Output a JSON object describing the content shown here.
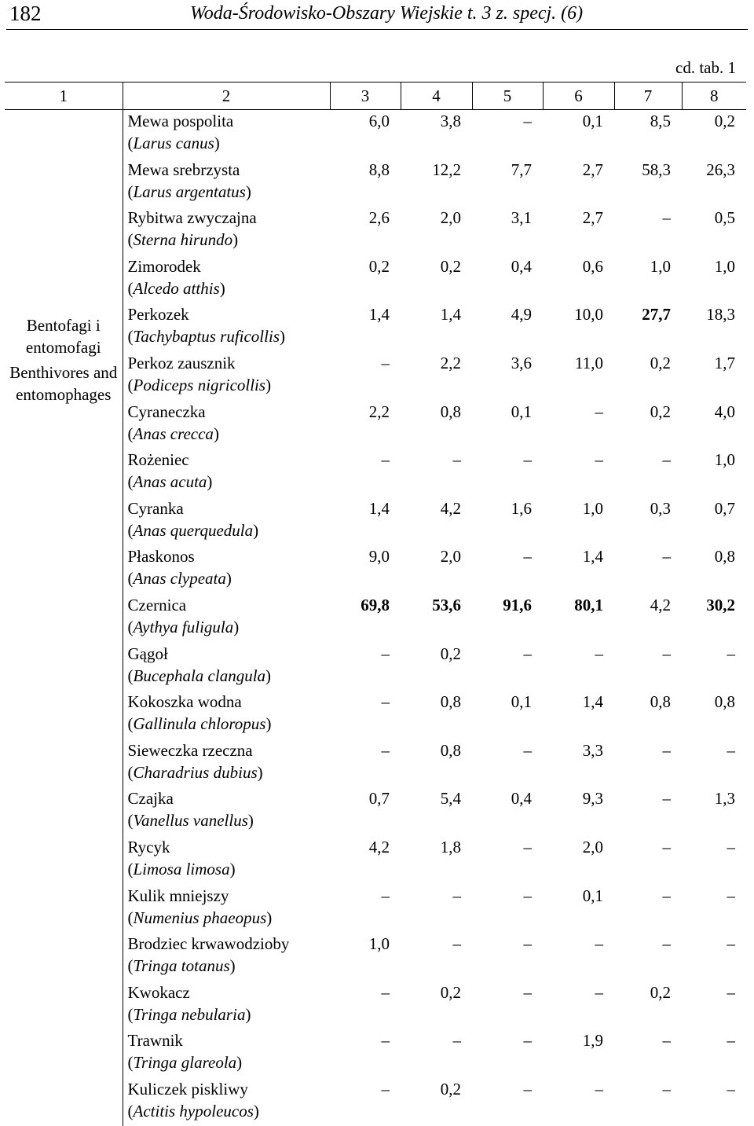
{
  "header": {
    "page_number": "182",
    "journal": "Woda-Środowisko-Obszary Wiejskie t. 3 z. specj. (6)"
  },
  "continuation": "cd. tab. 1",
  "columns": [
    "1",
    "2",
    "3",
    "4",
    "5",
    "6",
    "7",
    "8"
  ],
  "category": {
    "pl": "Bentofagi i entomofagi",
    "en": "Benthivores and entomophages"
  },
  "rows": [
    {
      "pl": "Mewa pospolita",
      "lat": "Larus canus",
      "vals": [
        "6,0",
        "3,8",
        "–",
        "0,1",
        "8,5",
        "0,2"
      ],
      "bold": []
    },
    {
      "pl": "Mewa srebrzysta",
      "lat": "Larus argentatus",
      "vals": [
        "8,8",
        "12,2",
        "7,7",
        "2,7",
        "58,3",
        "26,3"
      ],
      "bold": []
    },
    {
      "pl": "Rybitwa zwyczajna",
      "lat": "Sterna hirundo",
      "vals": [
        "2,6",
        "2,0",
        "3,1",
        "2,7",
        "–",
        "0,5"
      ],
      "bold": []
    },
    {
      "pl": "Zimorodek",
      "lat": "Alcedo atthis",
      "vals": [
        "0,2",
        "0,2",
        "0,4",
        "0,6",
        "1,0",
        "1,0"
      ],
      "bold": []
    },
    {
      "pl": "Perkozek",
      "lat": "Tachybaptus ruficollis",
      "vals": [
        "1,4",
        "1,4",
        "4,9",
        "10,0",
        "27,7",
        "18,3"
      ],
      "bold": [
        4
      ]
    },
    {
      "pl": "Perkoz zausznik",
      "lat": "Podiceps nigricollis",
      "vals": [
        "–",
        "2,2",
        "3,6",
        "11,0",
        "0,2",
        "1,7"
      ],
      "bold": []
    },
    {
      "pl": "Cyraneczka",
      "lat": "Anas crecca",
      "vals": [
        "2,2",
        "0,8",
        "0,1",
        "–",
        "0,2",
        "4,0"
      ],
      "bold": []
    },
    {
      "pl": "Rożeniec",
      "lat": "Anas acuta",
      "vals": [
        "–",
        "–",
        "–",
        "–",
        "–",
        "1,0"
      ],
      "bold": []
    },
    {
      "pl": "Cyranka",
      "lat": "Anas querquedula",
      "vals": [
        "1,4",
        "4,2",
        "1,6",
        "1,0",
        "0,3",
        "0,7"
      ],
      "bold": []
    },
    {
      "pl": "Płaskonos",
      "lat": "Anas clypeata",
      "vals": [
        "9,0",
        "2,0",
        "–",
        "1,4",
        "–",
        "0,8"
      ],
      "bold": []
    },
    {
      "pl": "Czernica",
      "lat": "Aythya fuligula",
      "vals": [
        "69,8",
        "53,6",
        "91,6",
        "80,1",
        "4,2",
        "30,2"
      ],
      "bold": [
        0,
        1,
        2,
        3,
        5
      ]
    },
    {
      "pl": "Gągoł",
      "lat": "Bucephala clangula",
      "vals": [
        "–",
        "0,2",
        "–",
        "–",
        "–",
        "–"
      ],
      "bold": []
    },
    {
      "pl": "Kokoszka wodna",
      "lat": "Gallinula chloropus",
      "vals": [
        "–",
        "0,8",
        "0,1",
        "1,4",
        "0,8",
        "0,8"
      ],
      "bold": []
    },
    {
      "pl": "Sieweczka rzeczna",
      "lat": "Charadrius dubius",
      "vals": [
        "–",
        "0,8",
        "–",
        "3,3",
        "–",
        "–"
      ],
      "bold": []
    },
    {
      "pl": "Czajka",
      "lat": "Vanellus vanellus",
      "vals": [
        "0,7",
        "5,4",
        "0,4",
        "9,3",
        "–",
        "1,3"
      ],
      "bold": []
    },
    {
      "pl": "Rycyk",
      "lat": "Limosa limosa",
      "vals": [
        "4,2",
        "1,8",
        "–",
        "2,0",
        "–",
        "–"
      ],
      "bold": []
    },
    {
      "pl": "Kulik mniejszy",
      "lat": "Numenius phaeopus",
      "vals": [
        "–",
        "–",
        "–",
        "0,1",
        "–",
        "–"
      ],
      "bold": []
    },
    {
      "pl": "Brodziec krwawodzioby",
      "lat": "Tringa totanus",
      "vals": [
        "1,0",
        "–",
        "–",
        "–",
        "–",
        "–"
      ],
      "bold": []
    },
    {
      "pl": "Kwokacz",
      "lat": "Tringa nebularia",
      "vals": [
        "–",
        "0,2",
        "–",
        "–",
        "0,2",
        "–"
      ],
      "bold": []
    },
    {
      "pl": "Trawnik",
      "lat": "Tringa glareola",
      "vals": [
        "–",
        "–",
        "–",
        "1,9",
        "–",
        "–"
      ],
      "bold": []
    },
    {
      "pl": "Kuliczek piskliwy",
      "lat": "Actitis hypoleucos",
      "vals": [
        "–",
        "0,2",
        "–",
        "–",
        "–",
        "–"
      ],
      "bold": []
    }
  ]
}
